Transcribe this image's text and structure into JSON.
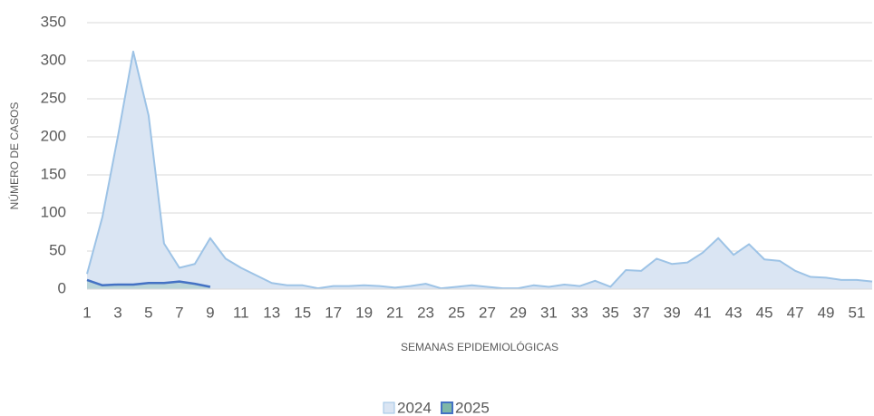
{
  "chart_data": {
    "type": "area",
    "x_label": "SEMANAS EPIDEMIOLÓGICAS",
    "y_label": "NÚMERO DE CASOS",
    "categories": [
      1,
      null,
      3,
      null,
      5,
      null,
      7,
      null,
      9,
      null,
      11,
      null,
      13,
      null,
      15,
      null,
      17,
      null,
      19,
      null,
      21,
      null,
      23,
      null,
      25,
      null,
      27,
      null,
      29,
      null,
      31,
      null,
      33,
      null,
      35,
      null,
      37,
      null,
      39,
      null,
      41,
      null,
      43,
      null,
      45,
      null,
      47,
      null,
      49,
      null,
      51,
      null
    ],
    "series": [
      {
        "name": "2024",
        "color": "#9dc3e6",
        "fill": "#dae5f3",
        "values": [
          20,
          95,
          200,
          312,
          228,
          60,
          28,
          33,
          67,
          40,
          28,
          18,
          8,
          5,
          5,
          1,
          4,
          4,
          5,
          4,
          2,
          4,
          7,
          1,
          3,
          5,
          3,
          1,
          1,
          5,
          3,
          6,
          4,
          11,
          3,
          25,
          24,
          40,
          33,
          35,
          48,
          67,
          45,
          59,
          39,
          37,
          24,
          16,
          15,
          12,
          12,
          10
        ]
      },
      {
        "name": "2025",
        "color": "#4472c4",
        "fill": "#7fb7a8",
        "values": [
          12,
          5,
          6,
          6,
          8,
          8,
          10,
          7,
          3,
          null,
          null,
          null,
          null,
          null,
          null,
          null,
          null,
          null,
          null,
          null,
          null,
          null,
          null,
          null,
          null,
          null,
          null,
          null,
          null,
          null,
          null,
          null,
          null,
          null,
          null,
          null,
          null,
          null,
          null,
          null,
          null,
          null,
          null,
          null,
          null,
          null,
          null,
          null,
          null,
          null,
          null,
          null
        ]
      }
    ],
    "ylim": [
      0,
      350
    ],
    "yticks": [
      0,
      50,
      100,
      150,
      200,
      250,
      300,
      350
    ],
    "grid": true
  }
}
